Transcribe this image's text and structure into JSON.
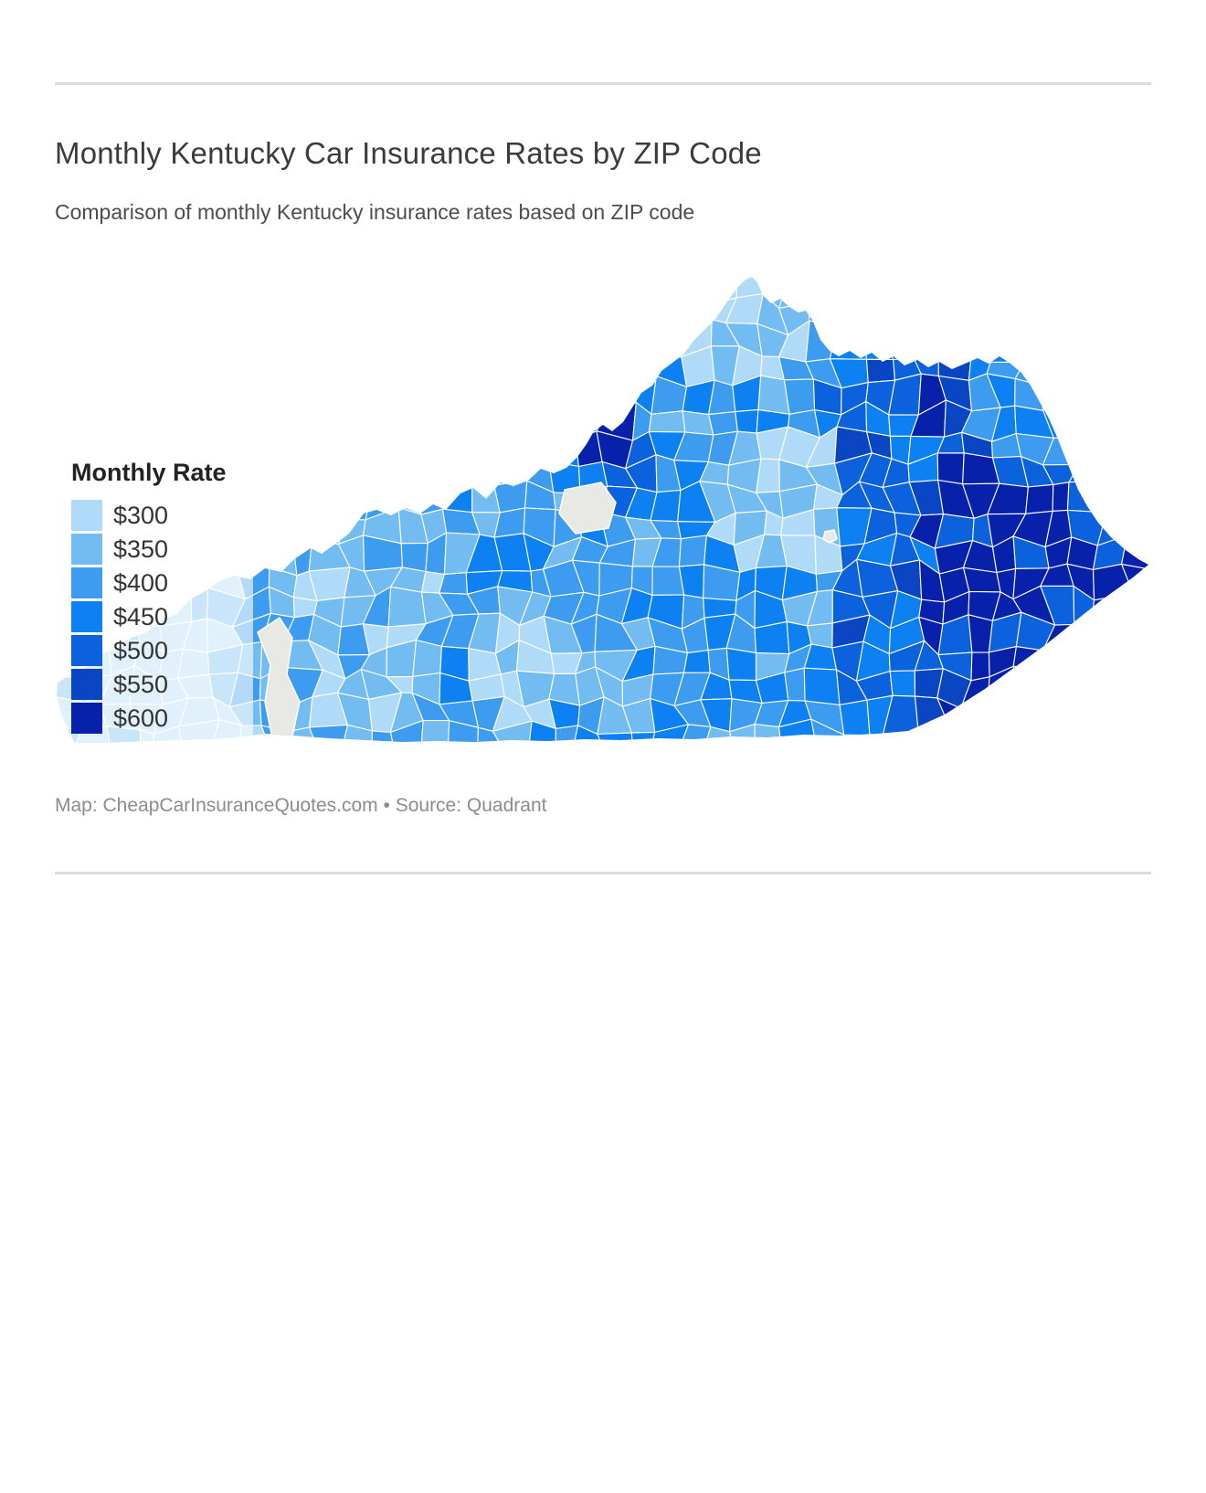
{
  "header": {
    "title": "Monthly Kentucky Car Insurance Rates by ZIP Code",
    "subtitle": "Comparison of monthly Kentucky insurance rates based on ZIP code"
  },
  "legend": {
    "title": "Monthly Rate",
    "items": [
      {
        "label": "$300",
        "color": "#B0DBF8"
      },
      {
        "label": "$350",
        "color": "#72BCF2"
      },
      {
        "label": "$400",
        "color": "#3D9CEF"
      },
      {
        "label": "$450",
        "color": "#0D80F2"
      },
      {
        "label": "$500",
        "color": "#0B62DC"
      },
      {
        "label": "$550",
        "color": "#0A45C4"
      },
      {
        "label": "$600",
        "color": "#0721AB"
      }
    ]
  },
  "map": {
    "region": "Kentucky",
    "no_data_color": "#E8E8E4",
    "boundary_color": "#FFFFFF"
  },
  "footer": {
    "attribution": "Map: CheapCarInsuranceQuotes.com • Source: Quadrant"
  },
  "chart_data": {
    "type": "choropleth",
    "geography": "Kentucky ZIP codes",
    "title": "Monthly Kentucky Car Insurance Rates by ZIP Code",
    "subtitle": "Comparison of monthly Kentucky insurance rates based on ZIP code",
    "legend_title": "Monthly Rate",
    "unit": "USD per month",
    "value_range": [
      300,
      600
    ],
    "scale": [
      {
        "value": 300,
        "color": "#B0DBF8"
      },
      {
        "value": 350,
        "color": "#72BCF2"
      },
      {
        "value": 400,
        "color": "#3D9CEF"
      },
      {
        "value": 450,
        "color": "#0D80F2"
      },
      {
        "value": 500,
        "color": "#0B62DC"
      },
      {
        "value": 550,
        "color": "#0A45C4"
      },
      {
        "value": 600,
        "color": "#0721AB"
      }
    ],
    "spatial_pattern": "Lowest rates (~$300) in far-western Kentucky (Jackson Purchase) and the northern Cincinnati-area ZIPs; mid-range ($350-$450) across western and central Kentucky with scattered $300 pockets; an elevated dark cluster (~$500-$600) at the Louisville urban core; highest rates ($500-$600) throughout southeastern Appalachian Kentucky toward the Virginia border; gray areas (Land Between the Lakes, Fort Knox) have no data.",
    "legend_position": "middle-left overlay"
  }
}
